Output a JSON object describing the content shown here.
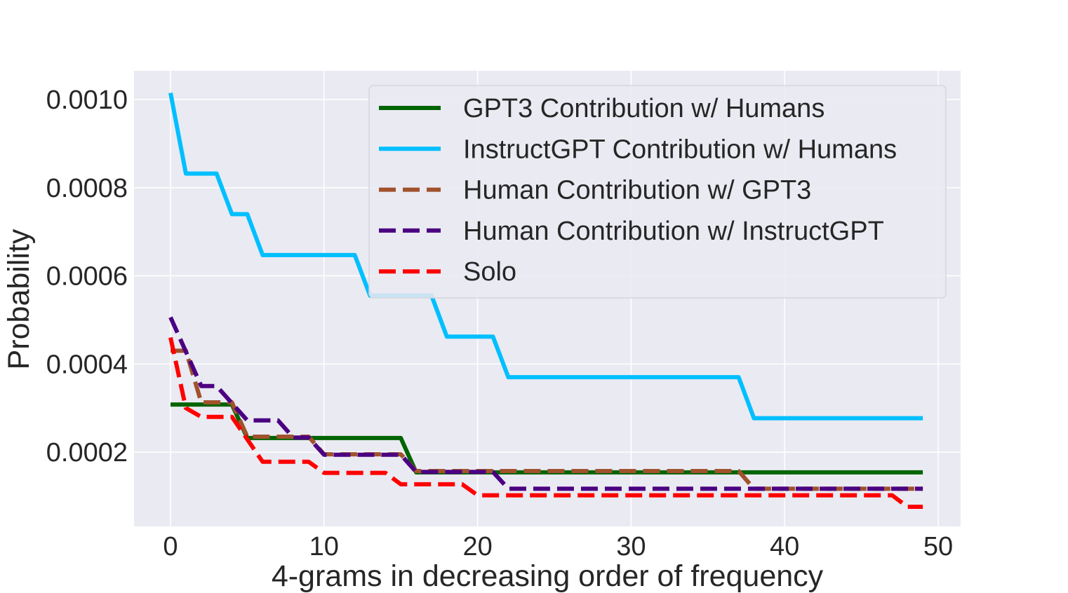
{
  "chart_data": {
    "type": "line",
    "title": "",
    "xlabel": "4-grams in decreasing order of frequency",
    "ylabel": "Probability",
    "xlim": [
      -2.3,
      51.4
    ],
    "ylim": [
      0.0,
      0.00104
    ],
    "xticks": [
      0,
      10,
      20,
      30,
      40,
      50
    ],
    "xtick_labels": [
      "0",
      "10",
      "20",
      "30",
      "40",
      "50"
    ],
    "yticks": [
      0.0002,
      0.0004,
      0.0006,
      0.0008,
      0.001
    ],
    "ytick_labels": [
      "0.0002",
      "0.0004",
      "0.0006",
      "0.0008",
      "0.0010"
    ],
    "grid": true,
    "legend_position": "upper-right",
    "series": [
      {
        "name": "GPT3 Contribution w/ Humans",
        "color": "#006400",
        "style": "solid",
        "points": [
          [
            0,
            0.000308
          ],
          [
            4,
            0.000308
          ],
          [
            5,
            0.000232
          ],
          [
            15,
            0.000232
          ],
          [
            16,
            0.000154
          ],
          [
            49,
            0.000154
          ]
        ]
      },
      {
        "name": "InstructGPT Contribution w/ Humans",
        "color": "#00bfff",
        "style": "solid",
        "points": [
          [
            0,
            0.001015
          ],
          [
            1,
            0.000832
          ],
          [
            3,
            0.000832
          ],
          [
            4,
            0.00074
          ],
          [
            5,
            0.00074
          ],
          [
            6,
            0.000647
          ],
          [
            12,
            0.000647
          ],
          [
            13,
            0.000555
          ],
          [
            17,
            0.000555
          ],
          [
            18,
            0.000462
          ],
          [
            21,
            0.000462
          ],
          [
            22,
            0.00037
          ],
          [
            37,
            0.00037
          ],
          [
            38,
            0.000277
          ],
          [
            49,
            0.000277
          ]
        ]
      },
      {
        "name": "Human Contribution w/ GPT3",
        "color": "#a0522d",
        "style": "dashed",
        "points": [
          [
            0,
            0.00043
          ],
          [
            1,
            0.00043
          ],
          [
            2,
            0.000313
          ],
          [
            4,
            0.000313
          ],
          [
            5,
            0.000235
          ],
          [
            9,
            0.000235
          ],
          [
            10,
            0.000195
          ],
          [
            15,
            0.000195
          ],
          [
            16,
            0.000157
          ],
          [
            37,
            0.000157
          ],
          [
            38,
            0.000117
          ],
          [
            49,
            0.000117
          ]
        ]
      },
      {
        "name": "Human Contribution w/ InstructGPT",
        "color": "#4b0082",
        "style": "dashed",
        "points": [
          [
            0,
            0.000506
          ],
          [
            2,
            0.00035
          ],
          [
            3,
            0.00035
          ],
          [
            5,
            0.000272
          ],
          [
            7,
            0.000272
          ],
          [
            8,
            0.000233
          ],
          [
            9,
            0.000233
          ],
          [
            10,
            0.000194
          ],
          [
            15,
            0.000194
          ],
          [
            16,
            0.000155
          ],
          [
            21,
            0.000155
          ],
          [
            22,
            0.000117
          ],
          [
            49,
            0.000117
          ]
        ]
      },
      {
        "name": "Solo",
        "color": "#ff0000",
        "style": "dashed",
        "points": [
          [
            0,
            0.00046
          ],
          [
            1,
            0.0003
          ],
          [
            2,
            0.00028
          ],
          [
            4,
            0.00028
          ],
          [
            6,
            0.000178
          ],
          [
            9,
            0.000178
          ],
          [
            10,
            0.000153
          ],
          [
            14,
            0.000153
          ],
          [
            15,
            0.000127
          ],
          [
            19,
            0.000127
          ],
          [
            20,
            0.000102
          ],
          [
            47,
            0.000102
          ],
          [
            48,
            7.6e-05
          ],
          [
            49,
            7.6e-05
          ]
        ]
      }
    ]
  }
}
